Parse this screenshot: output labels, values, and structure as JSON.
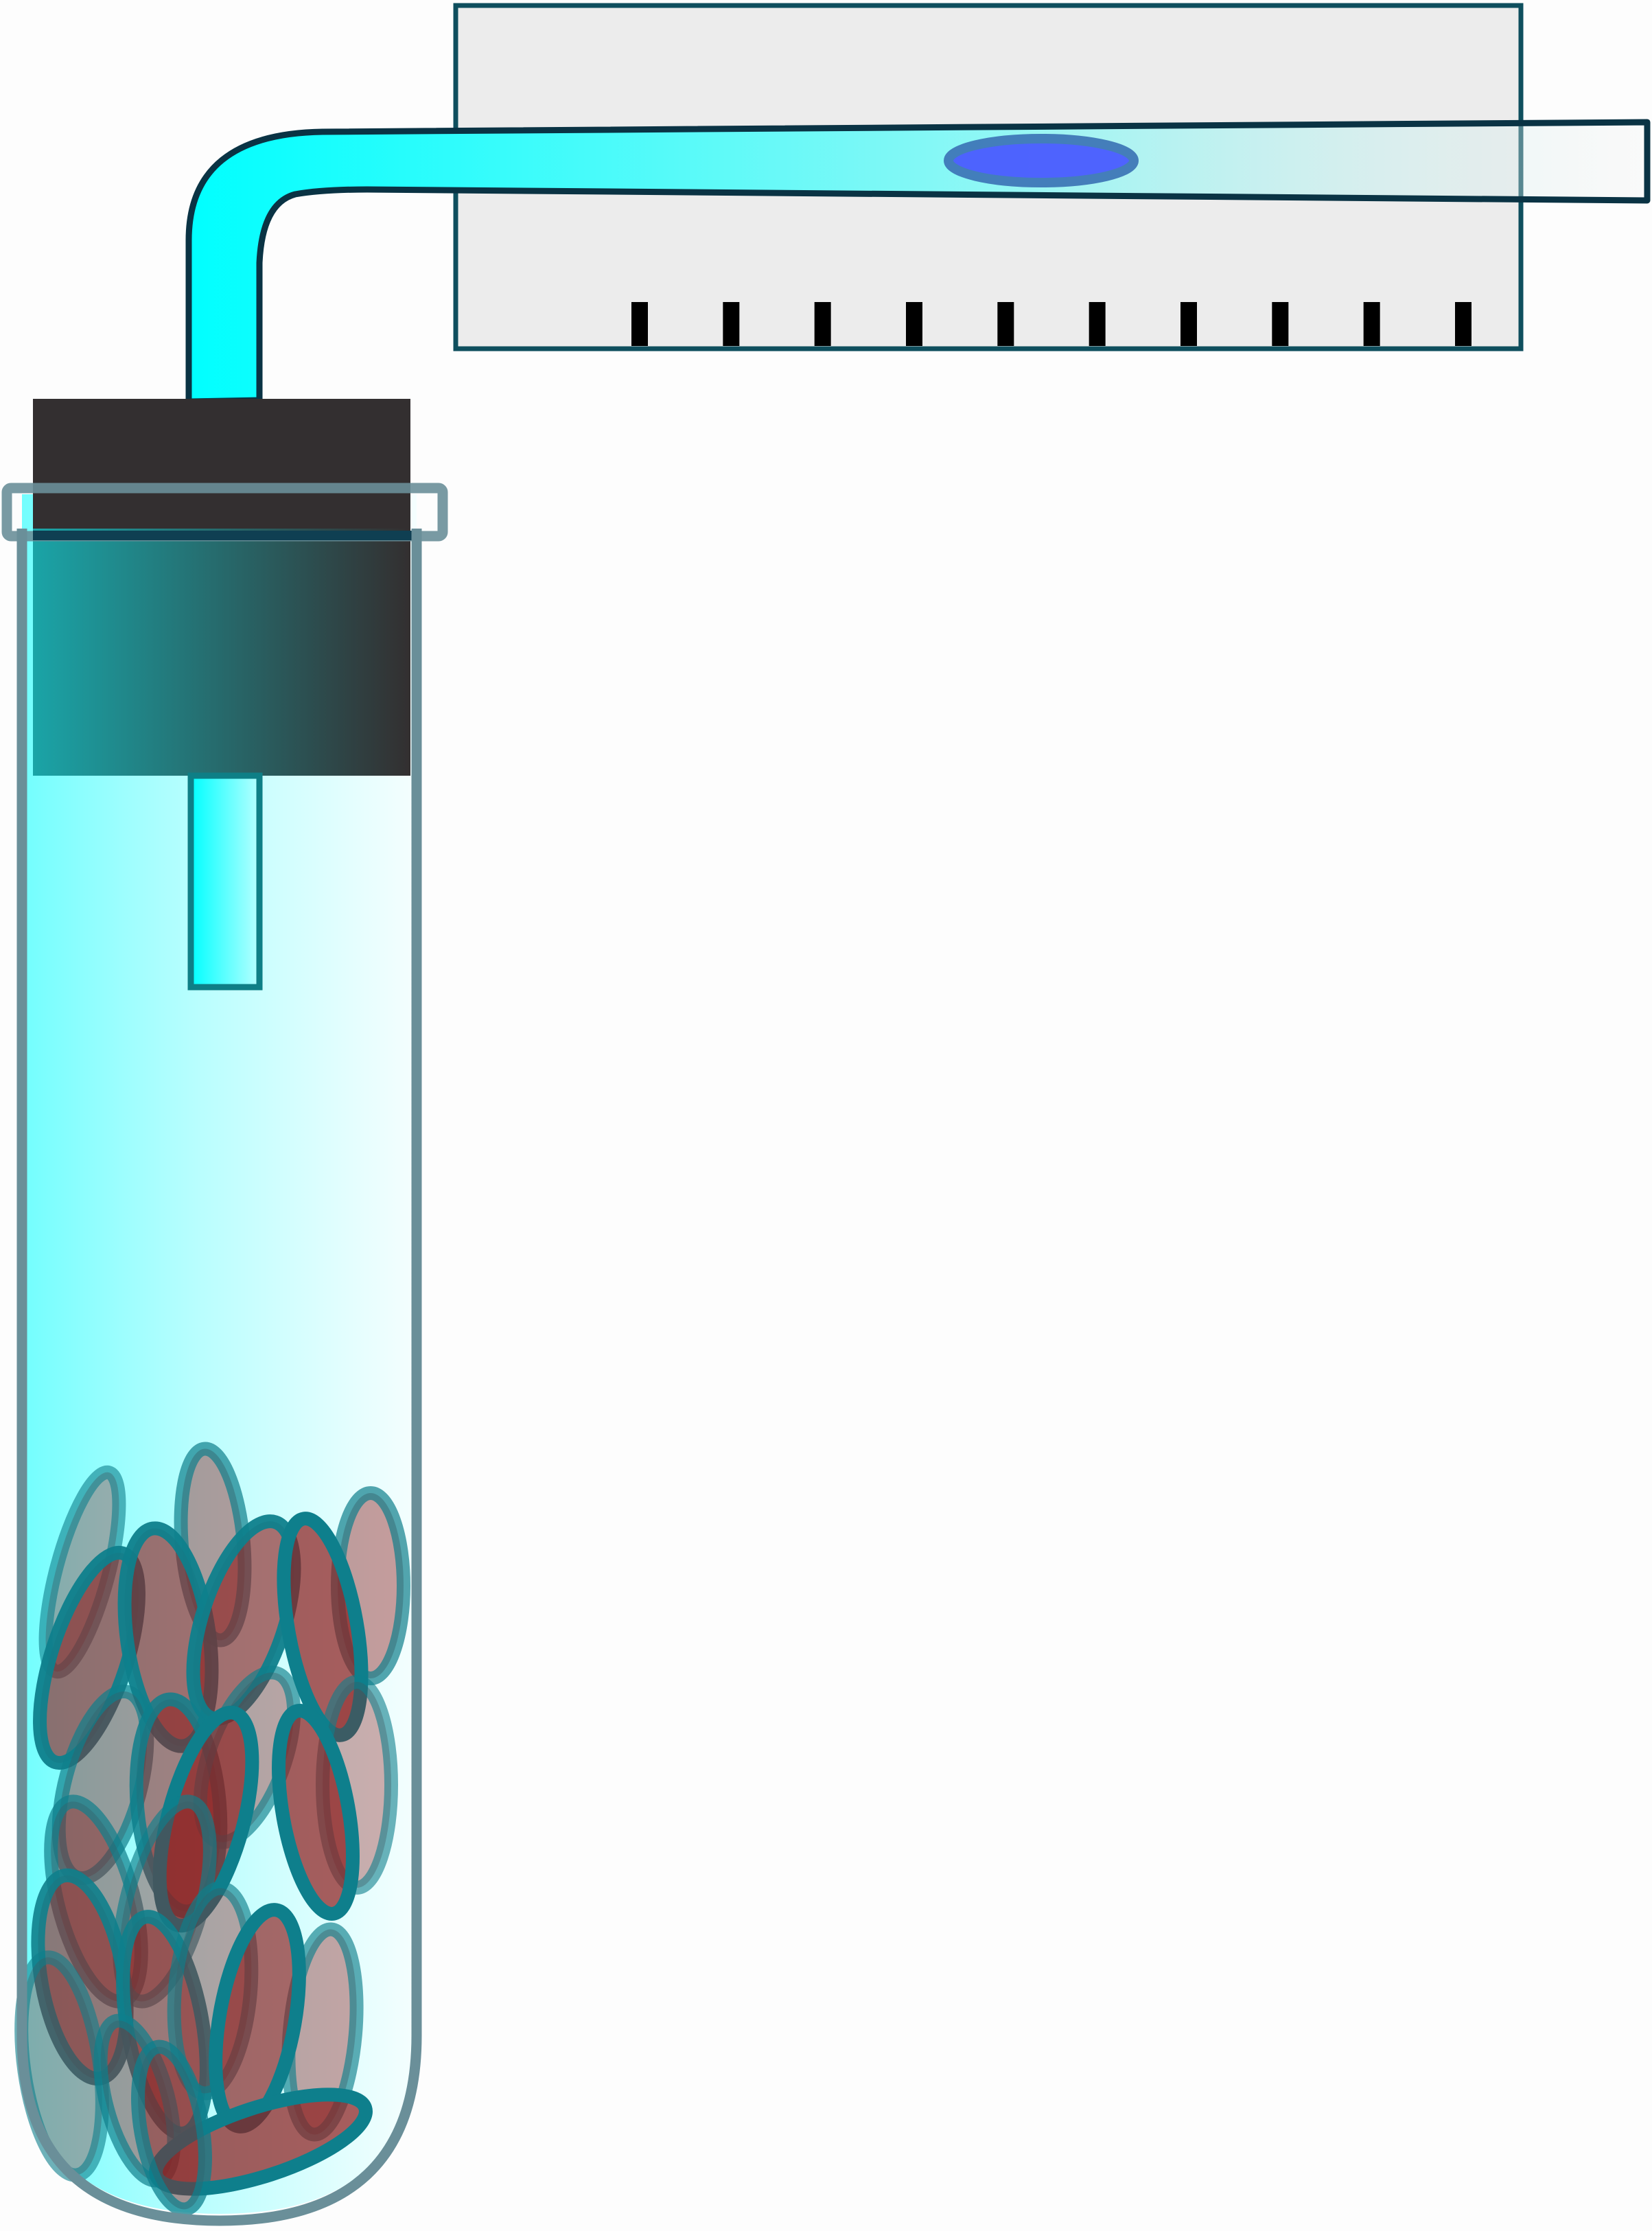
{
  "figure": {
    "kind": "respirometer apparatus",
    "colors": {
      "background": "#fdfdfd",
      "fluid": "#00ffff",
      "tube_outline": "#6a8f99",
      "stopper": "#332f30",
      "scale_panel": "#ececec",
      "outline_dark": "#0f3f52",
      "droplet": "#4a5cff",
      "seed_fill": "#8e1f1f",
      "seed_outline": "#0e7f8c",
      "tick": "#000000"
    },
    "scale": {
      "tick_count": 10
    },
    "seeds": {
      "count": 24
    }
  }
}
